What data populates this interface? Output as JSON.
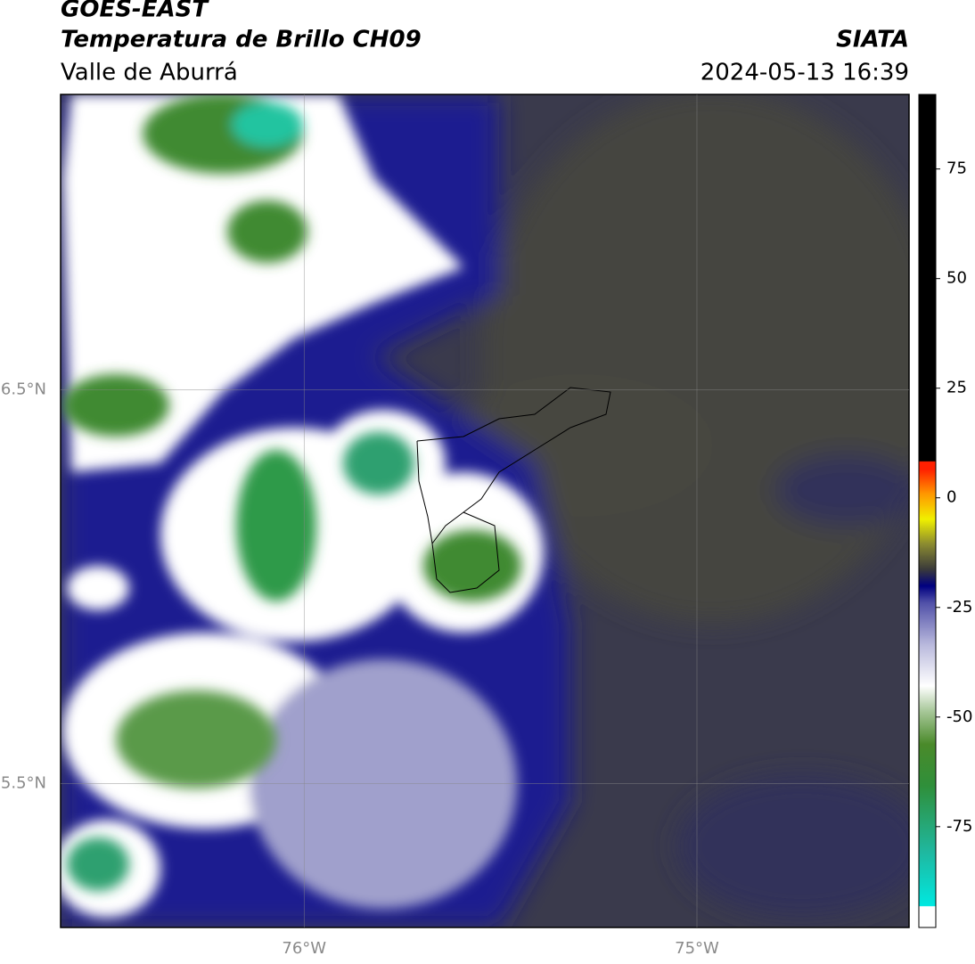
{
  "header": {
    "title": "GOES-EAST",
    "subtitle": "Temperatura de Brillo CH09",
    "region": "Valle de Aburrá",
    "source": "SIATA",
    "datetime": "2024-05-13 16:39"
  },
  "map": {
    "xlim": [
      -76.62,
      -74.46
    ],
    "ylim": [
      5.135,
      7.25
    ],
    "xticks": [
      {
        "value": -76,
        "label": "76°W"
      },
      {
        "value": -75,
        "label": "75°W"
      }
    ],
    "yticks": [
      {
        "value": 6.5,
        "label": "6.5°N"
      },
      {
        "value": 5.5,
        "label": "5.5°N"
      }
    ]
  },
  "colorbar": {
    "range": [
      -98,
      92
    ],
    "ticks": [
      75,
      50,
      25,
      0,
      -25,
      -50,
      -75
    ]
  }
}
